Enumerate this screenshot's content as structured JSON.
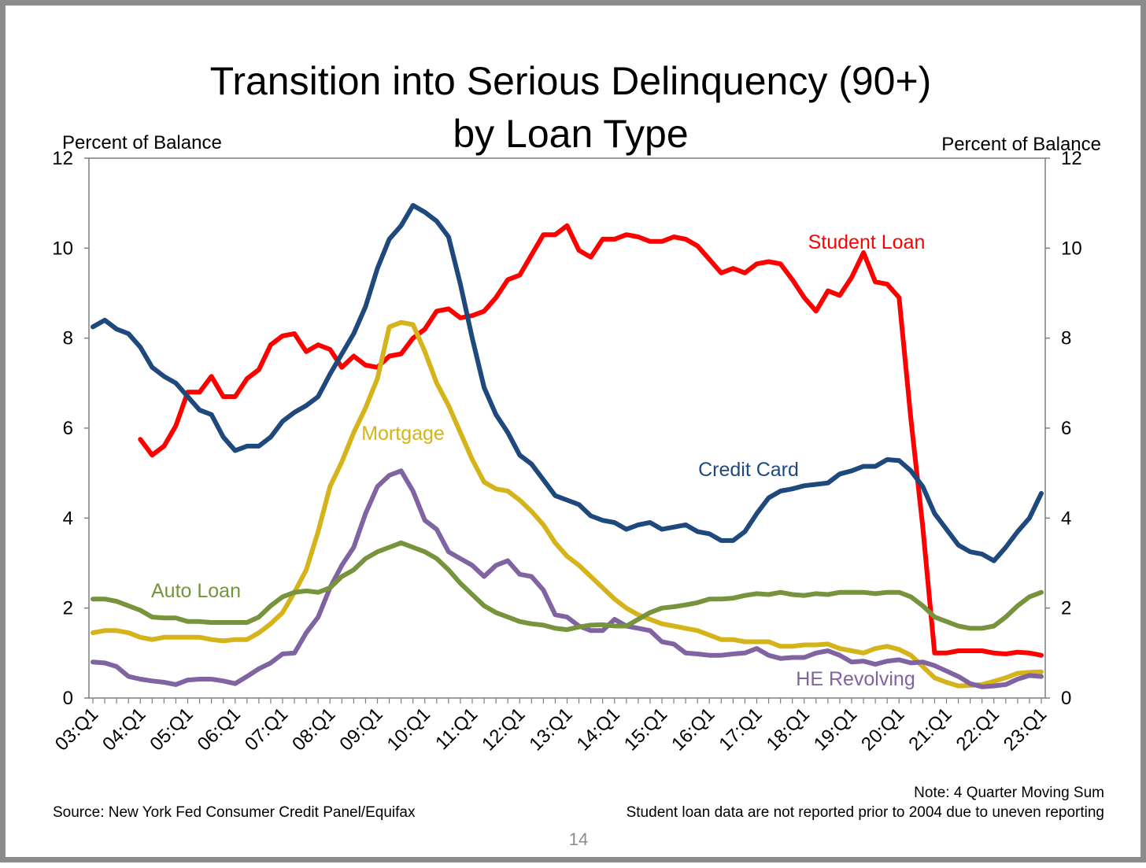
{
  "slide": {
    "title_line1": "Transition into Serious Delinquency (90+)",
    "title_line2": "by Loan Type",
    "left_axis_title": "Percent of Balance",
    "right_axis_title": "Percent of Balance",
    "note_line1": "Note: 4 Quarter Moving Sum",
    "note_line2": "Student loan data are not reported prior to 2004 due to uneven reporting",
    "source": "Source: New York Fed Consumer Credit Panel/Equifax",
    "page_number": "14"
  },
  "chart_data": {
    "type": "line",
    "title": "Transition into Serious Delinquency (90+) by Loan Type",
    "ylabel_left": "Percent of Balance",
    "ylabel_right": "Percent of Balance",
    "ylim": [
      0,
      12
    ],
    "yticks": [
      0,
      2,
      4,
      6,
      8,
      10,
      12
    ],
    "ytick_labels": [
      "0",
      "2",
      "4",
      "6",
      "8",
      "10",
      "12"
    ],
    "x_start": "03:Q1",
    "x_end": "23:Q1",
    "x_count": 81,
    "xtick_labels": [
      "03:Q1",
      "04:Q1",
      "05:Q1",
      "06:Q1",
      "07:Q1",
      "08:Q1",
      "09:Q1",
      "10:Q1",
      "11:Q1",
      "12:Q1",
      "13:Q1",
      "14:Q1",
      "15:Q1",
      "16:Q1",
      "17:Q1",
      "18:Q1",
      "19:Q1",
      "20:Q1",
      "21:Q1",
      "22:Q1",
      "23:Q1"
    ],
    "grid": false,
    "legend": "inline labels",
    "series": [
      {
        "name": "Student Loan",
        "color": "#ff0000",
        "start_index": 4,
        "values": [
          5.75,
          5.4,
          5.6,
          6.05,
          6.8,
          6.8,
          7.15,
          6.7,
          6.7,
          7.1,
          7.3,
          7.85,
          8.05,
          8.1,
          7.7,
          7.85,
          7.75,
          7.35,
          7.6,
          7.4,
          7.35,
          7.6,
          7.65,
          8.0,
          8.2,
          8.6,
          8.65,
          8.45,
          8.5,
          8.6,
          8.9,
          9.3,
          9.4,
          9.85,
          10.3,
          10.3,
          10.5,
          9.95,
          9.8,
          10.2,
          10.2,
          10.3,
          10.25,
          10.15,
          10.15,
          10.25,
          10.2,
          10.05,
          9.75,
          9.45,
          9.55,
          9.45,
          9.65,
          9.7,
          9.65,
          9.3,
          8.9,
          8.6,
          9.05,
          8.95,
          9.35,
          9.9,
          9.25,
          9.2,
          8.9,
          6.2,
          3.8,
          1.0,
          1.0,
          1.05,
          1.05,
          1.05,
          1.0,
          0.98,
          1.02,
          1.0,
          0.95
        ]
      },
      {
        "name": "Credit Card",
        "color": "#1f497d",
        "start_index": 0,
        "values": [
          8.25,
          8.4,
          8.2,
          8.1,
          7.8,
          7.35,
          7.15,
          7.0,
          6.7,
          6.4,
          6.3,
          5.8,
          5.5,
          5.6,
          5.6,
          5.8,
          6.15,
          6.35,
          6.5,
          6.7,
          7.2,
          7.65,
          8.1,
          8.7,
          9.55,
          10.2,
          10.5,
          10.95,
          10.8,
          10.6,
          10.25,
          9.2,
          8.0,
          6.9,
          6.3,
          5.9,
          5.4,
          5.2,
          4.85,
          4.5,
          4.4,
          4.3,
          4.05,
          3.95,
          3.9,
          3.75,
          3.85,
          3.9,
          3.75,
          3.8,
          3.85,
          3.7,
          3.65,
          3.5,
          3.5,
          3.7,
          4.1,
          4.45,
          4.6,
          4.65,
          4.72,
          4.75,
          4.78,
          4.98,
          5.05,
          5.15,
          5.15,
          5.3,
          5.28,
          5.05,
          4.7,
          4.1,
          3.75,
          3.4,
          3.25,
          3.2,
          3.05,
          3.35,
          3.7,
          4.0,
          4.55
        ]
      },
      {
        "name": "Mortgage",
        "color": "#d4b41a",
        "start_index": 0,
        "values": [
          1.45,
          1.5,
          1.5,
          1.45,
          1.35,
          1.3,
          1.35,
          1.35,
          1.35,
          1.35,
          1.3,
          1.27,
          1.3,
          1.3,
          1.45,
          1.65,
          1.9,
          2.35,
          2.85,
          3.7,
          4.7,
          5.25,
          5.9,
          6.45,
          7.1,
          8.25,
          8.35,
          8.3,
          7.7,
          7.0,
          6.5,
          5.9,
          5.3,
          4.8,
          4.65,
          4.6,
          4.4,
          4.15,
          3.85,
          3.45,
          3.15,
          2.95,
          2.7,
          2.45,
          2.2,
          2.0,
          1.85,
          1.75,
          1.65,
          1.6,
          1.55,
          1.5,
          1.4,
          1.3,
          1.3,
          1.25,
          1.25,
          1.25,
          1.15,
          1.15,
          1.18,
          1.18,
          1.2,
          1.1,
          1.05,
          1.0,
          1.1,
          1.15,
          1.08,
          0.95,
          0.7,
          0.45,
          0.35,
          0.27,
          0.28,
          0.3,
          0.37,
          0.45,
          0.55,
          0.57,
          0.58
        ]
      },
      {
        "name": "HE Revolving",
        "color": "#8064a2",
        "start_index": 0,
        "values": [
          0.8,
          0.78,
          0.7,
          0.48,
          0.42,
          0.38,
          0.35,
          0.3,
          0.4,
          0.42,
          0.42,
          0.38,
          0.32,
          0.48,
          0.65,
          0.78,
          0.98,
          1.0,
          1.45,
          1.8,
          2.45,
          2.95,
          3.35,
          4.1,
          4.7,
          4.95,
          5.05,
          4.6,
          3.95,
          3.75,
          3.25,
          3.1,
          2.95,
          2.7,
          2.95,
          3.05,
          2.75,
          2.7,
          2.4,
          1.85,
          1.8,
          1.6,
          1.5,
          1.5,
          1.75,
          1.6,
          1.55,
          1.5,
          1.25,
          1.2,
          1.0,
          0.98,
          0.95,
          0.95,
          0.98,
          1.0,
          1.1,
          0.95,
          0.88,
          0.9,
          0.9,
          1.0,
          1.05,
          0.95,
          0.8,
          0.82,
          0.75,
          0.82,
          0.85,
          0.78,
          0.8,
          0.72,
          0.6,
          0.48,
          0.32,
          0.25,
          0.27,
          0.3,
          0.42,
          0.5,
          0.48
        ]
      },
      {
        "name": "Auto Loan",
        "color": "#77933c",
        "start_index": 0,
        "values": [
          2.2,
          2.2,
          2.15,
          2.05,
          1.95,
          1.8,
          1.78,
          1.78,
          1.7,
          1.7,
          1.68,
          1.68,
          1.68,
          1.68,
          1.8,
          2.05,
          2.25,
          2.35,
          2.38,
          2.35,
          2.45,
          2.7,
          2.85,
          3.1,
          3.25,
          3.35,
          3.45,
          3.35,
          3.25,
          3.1,
          2.85,
          2.55,
          2.3,
          2.05,
          1.9,
          1.8,
          1.7,
          1.65,
          1.62,
          1.55,
          1.52,
          1.58,
          1.62,
          1.63,
          1.6,
          1.6,
          1.75,
          1.9,
          2.0,
          2.03,
          2.07,
          2.12,
          2.2,
          2.2,
          2.22,
          2.28,
          2.32,
          2.3,
          2.35,
          2.3,
          2.28,
          2.32,
          2.3,
          2.35,
          2.35,
          2.35,
          2.32,
          2.35,
          2.35,
          2.25,
          2.05,
          1.8,
          1.7,
          1.6,
          1.55,
          1.55,
          1.6,
          1.8,
          2.05,
          2.25,
          2.35
        ]
      }
    ]
  }
}
